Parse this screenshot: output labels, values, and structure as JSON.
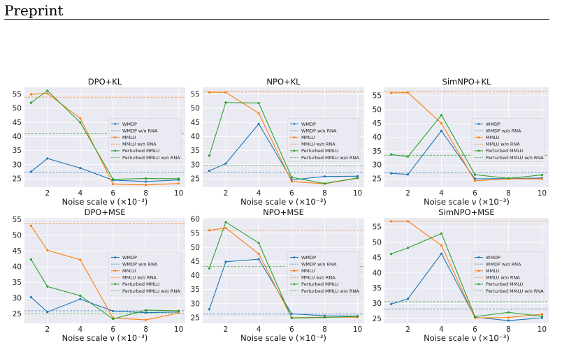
{
  "page": {
    "header": "Preprint"
  },
  "colors": {
    "wmdp": "#1f77b4",
    "mmlu": "#ff7f0e",
    "perturbed": "#2ca02c",
    "panel_bg": "#eaeaf2",
    "grid": "#ffffff"
  },
  "chart_data": [
    {
      "type": "line",
      "title": "DPO+KL",
      "xlabel": "Noise scale ν (×10⁻³)",
      "x": [
        1,
        2,
        4,
        6,
        8,
        10
      ],
      "xticks": [
        2,
        4,
        6,
        8,
        10
      ],
      "xlim": [
        0.6,
        10.4
      ],
      "ylim": [
        22,
        57.5
      ],
      "yticks": [
        25,
        30,
        35,
        40,
        45,
        50,
        55
      ],
      "legend": "center-right",
      "series": [
        {
          "name": "WMDP",
          "values": [
            27.5,
            32.2,
            28.8,
            24.5,
            24.0,
            24.6
          ]
        },
        {
          "name": "WMDP w/o RNA",
          "baseline": 27.3
        },
        {
          "name": "MMLU",
          "values": [
            55.0,
            55.3,
            46.5,
            23.1,
            22.8,
            23.3
          ]
        },
        {
          "name": "MMLU w/o RNA",
          "baseline": 54.0
        },
        {
          "name": "Perturbed MMLU",
          "values": [
            52.0,
            56.3,
            45.0,
            24.8,
            25.1,
            25.0
          ]
        },
        {
          "name": "Perturbed MMLU w/o RNA",
          "baseline": 41.0
        }
      ]
    },
    {
      "type": "line",
      "title": "NPO+KL",
      "xlabel": "Noise scale ν (×10⁻³)",
      "x": [
        1,
        2,
        4,
        6,
        8,
        10
      ],
      "xticks": [
        2,
        4,
        6,
        8,
        10
      ],
      "xlim": [
        0.6,
        10.4
      ],
      "ylim": [
        22,
        57.5
      ],
      "yticks": [
        25,
        30,
        35,
        40,
        45,
        50,
        55
      ],
      "legend": "center-right",
      "series": [
        {
          "name": "WMDP",
          "values": [
            27.8,
            30.4,
            44.5,
            24.6,
            25.8,
            25.9
          ]
        },
        {
          "name": "WMDP w/o RNA",
          "baseline": 27.3
        },
        {
          "name": "MMLU",
          "values": [
            55.7,
            55.7,
            48.3,
            24.0,
            23.2,
            25.2
          ]
        },
        {
          "name": "MMLU w/o RNA",
          "baseline": 56.0
        },
        {
          "name": "Perturbed MMLU",
          "values": [
            33.2,
            52.1,
            51.9,
            25.5,
            23.3,
            25.3
          ]
        },
        {
          "name": "Perturbed MMLU w/o RNA",
          "baseline": 29.6
        }
      ]
    },
    {
      "type": "line",
      "title": "SimNPO+KL",
      "xlabel": "Noise scale ν (×10⁻³)",
      "x": [
        1,
        2,
        4,
        6,
        8,
        10
      ],
      "xticks": [
        2,
        4,
        6,
        8,
        10
      ],
      "xlim": [
        0.6,
        10.4
      ],
      "ylim": [
        22,
        58
      ],
      "yticks": [
        25,
        30,
        35,
        40,
        45,
        50,
        55
      ],
      "legend": "center-right",
      "series": [
        {
          "name": "WMDP",
          "values": [
            27.0,
            26.6,
            42.3,
            25.0,
            25.1,
            25.3
          ]
        },
        {
          "name": "WMDP w/o RNA",
          "baseline": 27.2
        },
        {
          "name": "MMLU",
          "values": [
            56.0,
            56.1,
            45.0,
            24.3,
            25.0,
            25.0
          ]
        },
        {
          "name": "MMLU w/o RNA",
          "baseline": 56.5
        },
        {
          "name": "Perturbed MMLU",
          "values": [
            33.8,
            33.0,
            48.0,
            26.5,
            25.2,
            26.4
          ]
        },
        {
          "name": "Perturbed MMLU w/o RNA",
          "baseline": 33.5
        }
      ]
    },
    {
      "type": "line",
      "title": "DPO+MSE",
      "xlabel": "Noise scale ν (×10⁻³)",
      "x": [
        1,
        2,
        4,
        6,
        8,
        10
      ],
      "xticks": [
        2,
        4,
        6,
        8,
        10
      ],
      "xlim": [
        0.6,
        10.4
      ],
      "ylim": [
        22,
        55.5
      ],
      "yticks": [
        25,
        30,
        35,
        40,
        45,
        50,
        55
      ],
      "legend": "center-right",
      "series": [
        {
          "name": "WMDP",
          "values": [
            30.3,
            25.6,
            29.7,
            25.9,
            25.4,
            25.6
          ]
        },
        {
          "name": "WMDP w/o RNA",
          "baseline": 26.0
        },
        {
          "name": "MMLU",
          "values": [
            53.0,
            45.2,
            42.2,
            23.7,
            23.1,
            25.3
          ]
        },
        {
          "name": "MMLU w/o RNA",
          "baseline": 53.6
        },
        {
          "name": "Perturbed MMLU",
          "values": [
            42.3,
            33.7,
            30.8,
            23.4,
            26.2,
            26.0
          ]
        },
        {
          "name": "Perturbed MMLU w/o RNA",
          "baseline": 25.1
        }
      ]
    },
    {
      "type": "line",
      "title": "NPO+MSE",
      "xlabel": "Noise scale ν (×10⁻³)",
      "x": [
        1,
        2,
        4,
        6,
        8,
        10
      ],
      "xticks": [
        2,
        4,
        6,
        8,
        10
      ],
      "xlim": [
        0.6,
        10.4
      ],
      "ylim": [
        23,
        60.5
      ],
      "yticks": [
        25,
        30,
        35,
        40,
        45,
        50,
        55,
        60
      ],
      "legend": "center-right",
      "series": [
        {
          "name": "WMDP",
          "values": [
            28.0,
            44.9,
            45.8,
            26.4,
            25.7,
            25.6
          ]
        },
        {
          "name": "WMDP w/o RNA",
          "baseline": 26.3
        },
        {
          "name": "MMLU",
          "values": [
            56.1,
            56.9,
            47.7,
            25.0,
            25.2,
            25.2
          ]
        },
        {
          "name": "MMLU w/o RNA",
          "baseline": 56.1
        },
        {
          "name": "Perturbed MMLU",
          "values": [
            42.6,
            59.0,
            51.6,
            24.9,
            25.1,
            25.5
          ]
        },
        {
          "name": "Perturbed MMLU w/o RNA",
          "baseline": 43.2
        }
      ]
    },
    {
      "type": "line",
      "title": "SimNPO+MSE",
      "xlabel": "Noise scale ν (×10⁻³)",
      "x": [
        1,
        2,
        4,
        6,
        8,
        10
      ],
      "xticks": [
        2,
        4,
        6,
        8,
        10
      ],
      "xlim": [
        0.6,
        10.4
      ],
      "ylim": [
        23.5,
        58
      ],
      "yticks": [
        25,
        30,
        35,
        40,
        45,
        50,
        55
      ],
      "legend": "center-right",
      "series": [
        {
          "name": "WMDP",
          "values": [
            29.8,
            31.5,
            46.3,
            25.5,
            24.4,
            25.3
          ]
        },
        {
          "name": "WMDP w/o RNA",
          "baseline": 28.2
        },
        {
          "name": "MMLU",
          "values": [
            56.9,
            56.9,
            49.0,
            25.3,
            25.4,
            26.5
          ]
        },
        {
          "name": "MMLU w/o RNA",
          "baseline": 57.0
        },
        {
          "name": "Perturbed MMLU",
          "values": [
            46.2,
            48.2,
            52.9,
            25.7,
            27.1,
            25.8
          ]
        },
        {
          "name": "Perturbed MMLU w/o RNA",
          "baseline": 30.6
        }
      ]
    }
  ]
}
